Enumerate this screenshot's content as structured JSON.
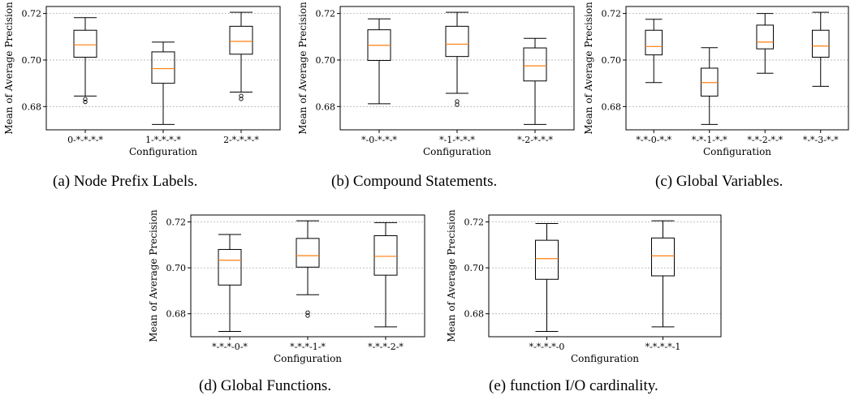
{
  "chart_data": [
    {
      "type": "box",
      "caption": "(a) Node Prefix Labels.",
      "xlabel": "Configuration",
      "ylabel": "Mean of Average Precision",
      "ylim": [
        0.67,
        0.723
      ],
      "yticks": [
        "0.68",
        "0.70",
        "0.72"
      ],
      "ytick_values": [
        0.68,
        0.7,
        0.72
      ],
      "grid": "horizontal dotted",
      "categories": [
        "0-*-*-*-*",
        "1-*-*-*-*",
        "2-*-*-*-*"
      ],
      "boxes": [
        {
          "whislo": 0.6845,
          "q1": 0.7012,
          "med": 0.7065,
          "q3": 0.7128,
          "whishi": 0.7182,
          "fliers": [
            0.682,
            0.6832
          ]
        },
        {
          "whislo": 0.6723,
          "q1": 0.69,
          "med": 0.6963,
          "q3": 0.7035,
          "whishi": 0.7077,
          "fliers": []
        },
        {
          "whislo": 0.6862,
          "q1": 0.7025,
          "med": 0.708,
          "q3": 0.7145,
          "whishi": 0.7205,
          "fliers": [
            0.6833,
            0.6846
          ]
        }
      ]
    },
    {
      "type": "box",
      "caption": "(b) Compound Statements.",
      "xlabel": "Configuration",
      "ylabel": "Mean of Average Precision",
      "ylim": [
        0.67,
        0.723
      ],
      "yticks": [
        "0.68",
        "0.70",
        "0.72"
      ],
      "ytick_values": [
        0.68,
        0.7,
        0.72
      ],
      "grid": "horizontal dotted",
      "categories": [
        "*-0-*-*-*",
        "*-1-*-*-*",
        "*-2-*-*-*"
      ],
      "boxes": [
        {
          "whislo": 0.6812,
          "q1": 0.6998,
          "med": 0.7063,
          "q3": 0.713,
          "whishi": 0.7177,
          "fliers": []
        },
        {
          "whislo": 0.6857,
          "q1": 0.7015,
          "med": 0.7068,
          "q3": 0.7145,
          "whishi": 0.7205,
          "fliers": [
            0.6808,
            0.6822
          ]
        },
        {
          "whislo": 0.6723,
          "q1": 0.691,
          "med": 0.6975,
          "q3": 0.7052,
          "whishi": 0.7093,
          "fliers": []
        }
      ]
    },
    {
      "type": "box",
      "caption": "(c) Global Variables.",
      "xlabel": "Configuration",
      "ylabel": "Mean of Average Precision",
      "ylim": [
        0.67,
        0.723
      ],
      "yticks": [
        "0.68",
        "0.70",
        "0.72"
      ],
      "ytick_values": [
        0.68,
        0.7,
        0.72
      ],
      "grid": "horizontal dotted",
      "categories": [
        "*-*-0-*-*",
        "*-*-1-*-*",
        "*-*-2-*-*",
        "*-*-3-*-*"
      ],
      "boxes": [
        {
          "whislo": 0.6903,
          "q1": 0.7022,
          "med": 0.7058,
          "q3": 0.7128,
          "whishi": 0.7175,
          "fliers": []
        },
        {
          "whislo": 0.6723,
          "q1": 0.6845,
          "med": 0.6903,
          "q3": 0.6965,
          "whishi": 0.7053,
          "fliers": []
        },
        {
          "whislo": 0.6943,
          "q1": 0.7048,
          "med": 0.7077,
          "q3": 0.715,
          "whishi": 0.72,
          "fliers": []
        },
        {
          "whislo": 0.6887,
          "q1": 0.7012,
          "med": 0.706,
          "q3": 0.7128,
          "whishi": 0.7205,
          "fliers": []
        }
      ]
    },
    {
      "type": "box",
      "caption": "(d) Global Functions.",
      "xlabel": "Configuration",
      "ylabel": "Mean of Average Precision",
      "ylim": [
        0.67,
        0.723
      ],
      "yticks": [
        "0.68",
        "0.70",
        "0.72"
      ],
      "ytick_values": [
        0.68,
        0.7,
        0.72
      ],
      "grid": "horizontal dotted",
      "categories": [
        "*-*-*-0-*",
        "*-*-*-1-*",
        "*-*-*-2-*"
      ],
      "boxes": [
        {
          "whislo": 0.6723,
          "q1": 0.6925,
          "med": 0.7033,
          "q3": 0.708,
          "whishi": 0.7145,
          "fliers": []
        },
        {
          "whislo": 0.6883,
          "q1": 0.7003,
          "med": 0.7053,
          "q3": 0.7128,
          "whishi": 0.7205,
          "fliers": [
            0.6792,
            0.6805
          ]
        },
        {
          "whislo": 0.6743,
          "q1": 0.6968,
          "med": 0.705,
          "q3": 0.714,
          "whishi": 0.7197,
          "fliers": []
        }
      ]
    },
    {
      "type": "box",
      "caption": "(e) function I/O cardinality.",
      "xlabel": "Configuration",
      "ylabel": "Mean of Average Precision",
      "ylim": [
        0.67,
        0.723
      ],
      "yticks": [
        "0.68",
        "0.70",
        "0.72"
      ],
      "ytick_values": [
        0.68,
        0.7,
        0.72
      ],
      "grid": "horizontal dotted",
      "categories": [
        "*-*-*-*-0",
        "*-*-*-*-1"
      ],
      "boxes": [
        {
          "whislo": 0.6723,
          "q1": 0.695,
          "med": 0.704,
          "q3": 0.712,
          "whishi": 0.7193,
          "fliers": []
        },
        {
          "whislo": 0.6743,
          "q1": 0.6965,
          "med": 0.7052,
          "q3": 0.713,
          "whishi": 0.7205,
          "fliers": []
        }
      ]
    }
  ],
  "colors": {
    "median": "#ff7f0e",
    "box": "#000000",
    "grid": "#b0b0b0"
  }
}
